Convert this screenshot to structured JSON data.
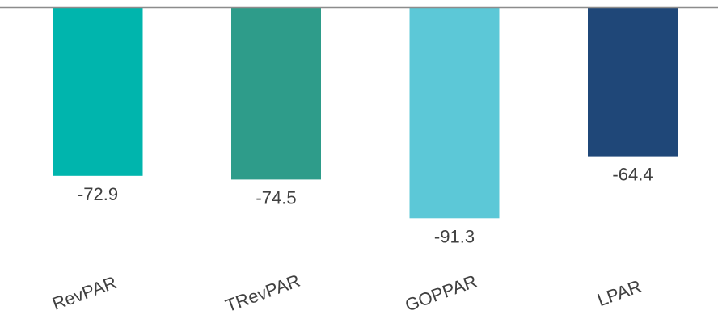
{
  "chart_data": {
    "type": "bar",
    "categories": [
      "RevPAR",
      "TRevPAR",
      "GOPPAR",
      "LPAR"
    ],
    "values": [
      -72.9,
      -74.5,
      -91.3,
      -64.4
    ],
    "value_labels": [
      "-72.9",
      "-74.5",
      "-91.3",
      "-64.4"
    ],
    "colors": [
      "#00B5AD",
      "#2E9C8A",
      "#5CC8D7",
      "#1F4778"
    ],
    "title": "",
    "xlabel": "",
    "ylabel": "",
    "ylim": [
      -94,
      0
    ],
    "grid": false,
    "legend": "none",
    "baseline_color": "#8C8C8C",
    "text_color": "#404040"
  }
}
